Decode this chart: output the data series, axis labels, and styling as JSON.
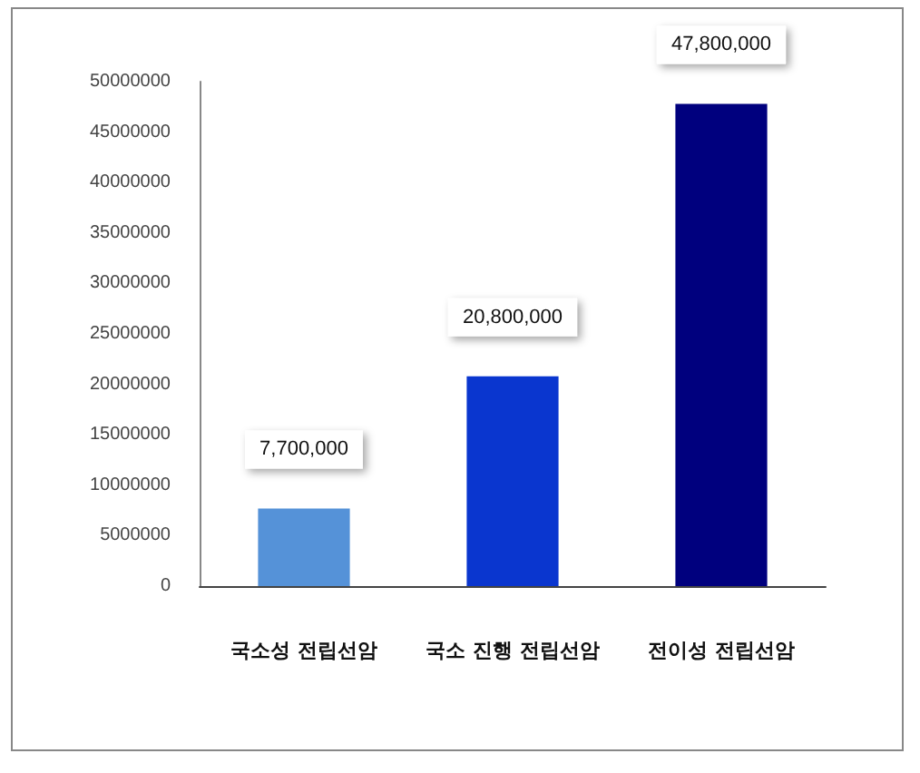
{
  "chart_data": {
    "type": "bar",
    "categories": [
      "국소성 전립선암",
      "국소 진행 전립선암",
      "전이성 전립선암"
    ],
    "values": [
      7700000,
      20800000,
      47800000
    ],
    "value_labels": [
      "7,700,000",
      "20,800,000",
      "47,800,000"
    ],
    "colors": [
      "#5592d8",
      "#0a36cf",
      "#00007e"
    ],
    "ylim": [
      0,
      50000000
    ],
    "yticks": [
      0,
      5000000,
      10000000,
      15000000,
      20000000,
      25000000,
      30000000,
      35000000,
      40000000,
      45000000,
      50000000
    ],
    "grid": false
  }
}
